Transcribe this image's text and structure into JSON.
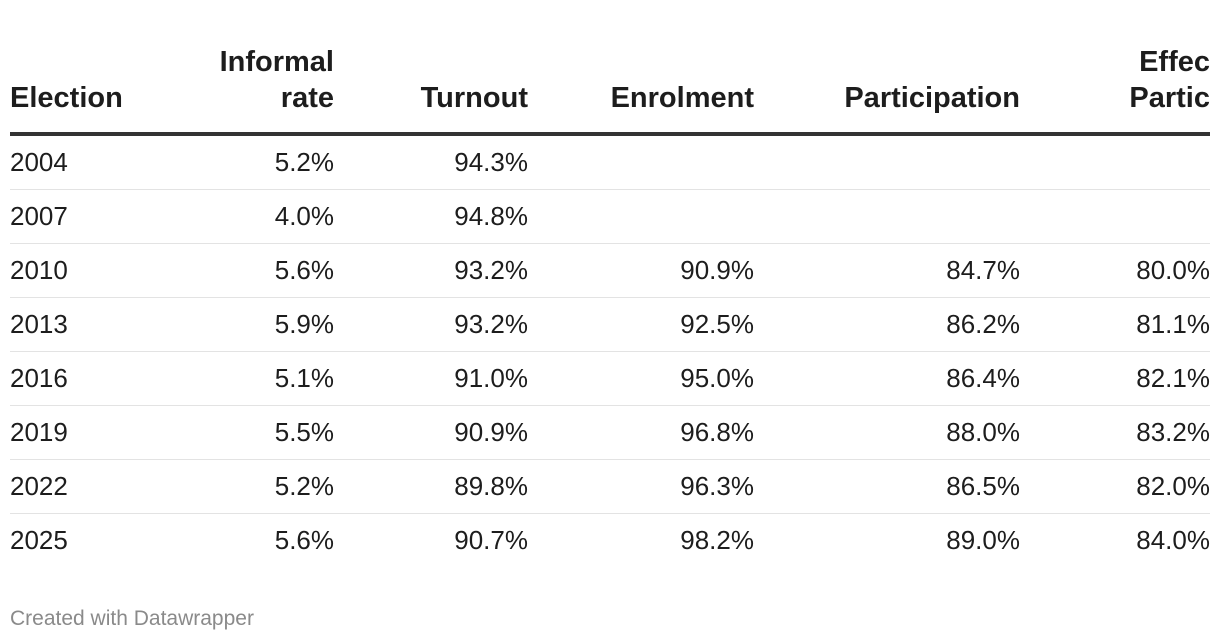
{
  "chart_data": {
    "type": "table",
    "columns": [
      {
        "key": "election",
        "label_lines": [
          "Election"
        ],
        "align": "left"
      },
      {
        "key": "informal_rate",
        "label_lines": [
          "Informal",
          "rate"
        ],
        "align": "right"
      },
      {
        "key": "turnout",
        "label_lines": [
          "Turnout"
        ],
        "align": "right"
      },
      {
        "key": "enrolment",
        "label_lines": [
          "Enrolment"
        ],
        "align": "right"
      },
      {
        "key": "participation",
        "label_lines": [
          "Participation"
        ],
        "align": "right"
      },
      {
        "key": "effective_participation",
        "label_lines": [
          "Effec",
          "Partic"
        ],
        "align": "right"
      }
    ],
    "rows": [
      {
        "election": "2004",
        "informal_rate": "5.2%",
        "turnout": "94.3%",
        "enrolment": "",
        "participation": "",
        "effective_participation": ""
      },
      {
        "election": "2007",
        "informal_rate": "4.0%",
        "turnout": "94.8%",
        "enrolment": "",
        "participation": "",
        "effective_participation": ""
      },
      {
        "election": "2010",
        "informal_rate": "5.6%",
        "turnout": "93.2%",
        "enrolment": "90.9%",
        "participation": "84.7%",
        "effective_participation": "80.0%"
      },
      {
        "election": "2013",
        "informal_rate": "5.9%",
        "turnout": "93.2%",
        "enrolment": "92.5%",
        "participation": "86.2%",
        "effective_participation": "81.1%"
      },
      {
        "election": "2016",
        "informal_rate": "5.1%",
        "turnout": "91.0%",
        "enrolment": "95.0%",
        "participation": "86.4%",
        "effective_participation": "82.1%"
      },
      {
        "election": "2019",
        "informal_rate": "5.5%",
        "turnout": "90.9%",
        "enrolment": "96.8%",
        "participation": "88.0%",
        "effective_participation": "83.2%"
      },
      {
        "election": "2022",
        "informal_rate": "5.2%",
        "turnout": "89.8%",
        "enrolment": "96.3%",
        "participation": "86.5%",
        "effective_participation": "82.0%"
      },
      {
        "election": "2025",
        "informal_rate": "5.6%",
        "turnout": "90.7%",
        "enrolment": "98.2%",
        "participation": "89.0%",
        "effective_participation": "84.0%"
      }
    ]
  },
  "footer": {
    "credit": "Created with Datawrapper"
  }
}
